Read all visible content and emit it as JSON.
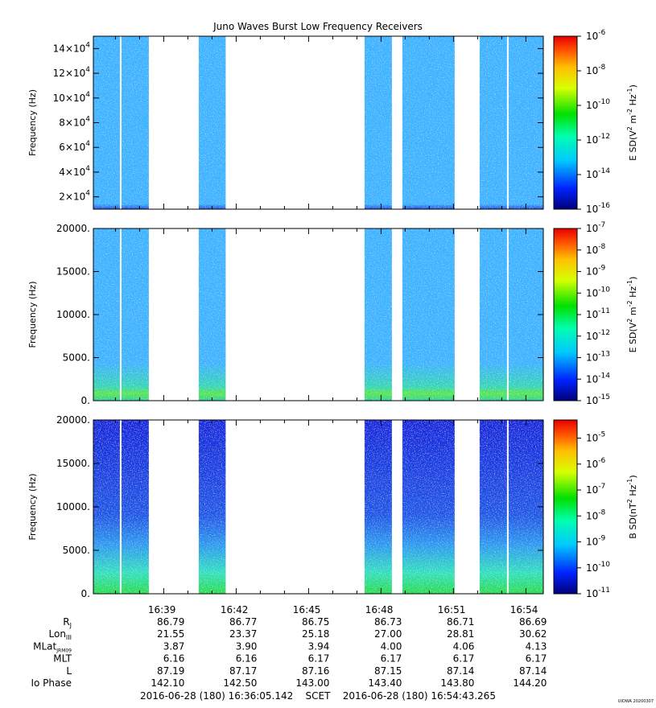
{
  "chart_data": {
    "type": "heatmap",
    "title": "Juno Waves Burst Low Frequency Receivers",
    "x_range": [
      "16:36:05.142",
      "16:54:43.265"
    ],
    "x_tick_labels": [
      "16:39",
      "16:42",
      "16:45",
      "16:48",
      "16:51",
      "16:54"
    ],
    "data_intervals": [
      [
        "16:36:05",
        "16:37:11"
      ],
      [
        "16:37:15",
        "16:38:23"
      ],
      [
        "16:40:27",
        "16:41:34"
      ],
      [
        "16:47:19",
        "16:48:27"
      ],
      [
        "16:48:53",
        "16:51:03"
      ],
      [
        "16:52:05",
        "16:53:13"
      ],
      [
        "16:53:17",
        "16:54:43"
      ]
    ],
    "panels": [
      {
        "ylabel": "Frequency (Hz)",
        "ylim": [
          10000,
          150000
        ],
        "y_tick_labels": [
          {
            "value": 20000,
            "mant": "2×10",
            "exp": "4"
          },
          {
            "value": 40000,
            "mant": "4×10",
            "exp": "4"
          },
          {
            "value": 60000,
            "mant": "6×10",
            "exp": "4"
          },
          {
            "value": 80000,
            "mant": "8×10",
            "exp": "4"
          },
          {
            "value": 100000,
            "mant": "10×10",
            "exp": "4"
          },
          {
            "value": 120000,
            "mant": "12×10",
            "exp": "4"
          },
          {
            "value": 140000,
            "mant": "14×10",
            "exp": "4"
          }
        ],
        "colorbar_label": {
          "prefix": "E SD(V",
          "e1": "2",
          "mid": " m",
          "e2": "-2",
          "mid2": " Hz",
          "e3": "-1",
          "suffix": ")"
        },
        "colorbar_range_log10": [
          -16,
          -6
        ],
        "colorbar_ticks": [
          {
            "exp": "-6",
            "value": -6
          },
          {
            "exp": "-8",
            "value": -8
          },
          {
            "exp": "-10",
            "value": -10
          },
          {
            "exp": "-12",
            "value": -12
          },
          {
            "exp": "-14",
            "value": -14
          },
          {
            "exp": "-16",
            "value": -16
          }
        ],
        "base_color": "#3cb4ff",
        "low_freq_color": "#1e50dc"
      },
      {
        "ylabel": "Frequency (Hz)",
        "ylim": [
          0,
          20000
        ],
        "y_tick_labels": [
          {
            "value": 0,
            "text": "0."
          },
          {
            "value": 5000,
            "text": "5000."
          },
          {
            "value": 10000,
            "text": "10000."
          },
          {
            "value": 15000,
            "text": "15000."
          },
          {
            "value": 20000,
            "text": "20000."
          }
        ],
        "colorbar_label": {
          "prefix": "E SD(V",
          "e1": "2",
          "mid": " m",
          "e2": "-2",
          "mid2": " Hz",
          "e3": "-1",
          "suffix": ")"
        },
        "colorbar_range_log10": [
          -15,
          -7
        ],
        "colorbar_ticks": [
          {
            "exp": "-7",
            "value": -7
          },
          {
            "exp": "-8",
            "value": -8
          },
          {
            "exp": "-9",
            "value": -9
          },
          {
            "exp": "-10",
            "value": -10
          },
          {
            "exp": "-11",
            "value": -11
          },
          {
            "exp": "-12",
            "value": -12
          },
          {
            "exp": "-13",
            "value": -13
          },
          {
            "exp": "-14",
            "value": -14
          },
          {
            "exp": "-15",
            "value": -15
          }
        ],
        "base_color": "#3cb4ff",
        "low_freq_color": "#5ae650"
      },
      {
        "ylabel": "Frequency (Hz)",
        "ylim": [
          0,
          20000
        ],
        "y_tick_labels": [
          {
            "value": 0,
            "text": "0."
          },
          {
            "value": 5000,
            "text": "5000."
          },
          {
            "value": 10000,
            "text": "10000."
          },
          {
            "value": 15000,
            "text": "15000."
          },
          {
            "value": 20000,
            "text": "20000."
          }
        ],
        "colorbar_label": {
          "prefix": "B SD(nT",
          "e1": "2",
          "mid": " Hz",
          "e2": "-1",
          "mid2": "",
          "e3": "",
          "suffix": ")"
        },
        "colorbar_range_log10": [
          -11,
          -4.3
        ],
        "colorbar_ticks": [
          {
            "exp": "-5",
            "value": -5
          },
          {
            "exp": "-6",
            "value": -6
          },
          {
            "exp": "-7",
            "value": -7
          },
          {
            "exp": "-8",
            "value": -8
          },
          {
            "exp": "-9",
            "value": -9
          },
          {
            "exp": "-10",
            "value": -10
          },
          {
            "exp": "-11",
            "value": -11
          }
        ],
        "base_color": "#1428dc",
        "low_freq_color": "#28dc50"
      }
    ],
    "ephemeris": {
      "rows": [
        {
          "label": "R",
          "sub": "J",
          "values": [
            "86.79",
            "86.77",
            "86.75",
            "86.73",
            "86.71",
            "86.69"
          ]
        },
        {
          "label": "Lon",
          "sub": "III",
          "values": [
            "21.55",
            "23.37",
            "25.18",
            "27.00",
            "28.81",
            "30.62"
          ]
        },
        {
          "label": "MLat",
          "sub": "JRM09",
          "values": [
            "3.87",
            "3.90",
            "3.94",
            "4.00",
            "4.06",
            "4.13"
          ]
        },
        {
          "label": "MLT",
          "sub": "",
          "values": [
            "6.16",
            "6.16",
            "6.17",
            "6.17",
            "6.17",
            "6.17"
          ]
        },
        {
          "label": "L",
          "sub": "",
          "values": [
            "87.19",
            "87.17",
            "87.16",
            "87.15",
            "87.14",
            "87.14"
          ]
        },
        {
          "label": "Io Phase",
          "sub": "",
          "values": [
            "142.10",
            "142.50",
            "143.00",
            "143.40",
            "143.80",
            "144.20"
          ]
        }
      ]
    },
    "time_footer": "2016-06-28 (180) 16:36:05.142    SCET    2016-06-28 (180) 16:54:43.265",
    "stamp": "UIOWA 20200307"
  }
}
